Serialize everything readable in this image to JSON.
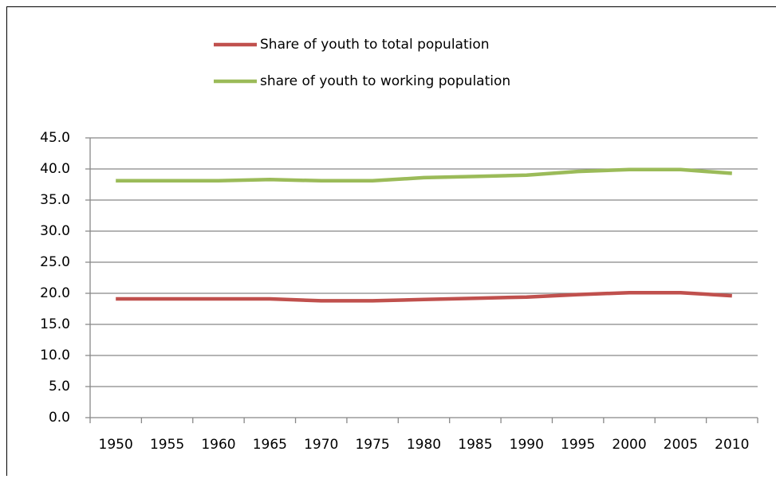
{
  "chart_data": {
    "type": "line",
    "categories": [
      "1950",
      "1955",
      "1960",
      "1965",
      "1970",
      "1975",
      "1980",
      "1985",
      "1990",
      "1995",
      "2000",
      "2005",
      "2010"
    ],
    "series": [
      {
        "name": "Share of youth to total population",
        "color": "#c0504d",
        "values": [
          19.1,
          19.1,
          19.1,
          19.1,
          18.8,
          18.8,
          19.0,
          19.2,
          19.4,
          19.8,
          20.1,
          20.1,
          19.6
        ]
      },
      {
        "name": "share of youth to working population",
        "color": "#9bbb59",
        "values": [
          38.1,
          38.1,
          38.1,
          38.3,
          38.1,
          38.1,
          38.6,
          38.8,
          39.0,
          39.6,
          39.9,
          39.9,
          39.3
        ]
      }
    ],
    "ylim": [
      0,
      45
    ],
    "yticks": [
      {
        "value": 0,
        "label": "0.0"
      },
      {
        "value": 5,
        "label": "5.0"
      },
      {
        "value": 10,
        "label": "10.0"
      },
      {
        "value": 15,
        "label": "15.0"
      },
      {
        "value": 20,
        "label": "20.0"
      },
      {
        "value": 25,
        "label": "25.0"
      },
      {
        "value": 30,
        "label": "30.0"
      },
      {
        "value": 35,
        "label": "35.0"
      },
      {
        "value": 40,
        "label": "40.0"
      },
      {
        "value": 45,
        "label": "45.0"
      }
    ],
    "grid": true,
    "legend": "top"
  }
}
